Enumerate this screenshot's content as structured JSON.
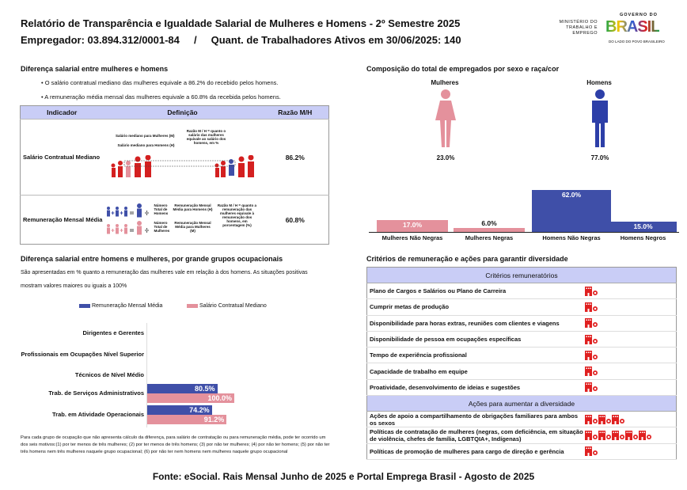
{
  "header": {
    "title": "Relatório de Transparência e Igualdade Salarial de Mulheres e Homens - 2º Semestre 2025",
    "subtitle": "Empregador: 03.894.312/0001-84     /     Quant. de Trabalhadores Ativos em 30/06/2025: 140",
    "logo_ministry": "MINISTÉRIO DO TRABALHO E EMPREGO",
    "logo_gov": "GOVERNO DO",
    "logo_brasil": "BRASIL",
    "logo_tagline": "DO LADO DO POVO BRASILEIRO"
  },
  "salary_gap": {
    "title": "Diferença salarial entre mulheres e homens",
    "bullets": [
      "O salário contratual mediano das mulheres equivale a 86.2% do recebido pelos homens.",
      "A remuneração média mensal das mulheres equivale a 60.8% da recebida pelos homens."
    ],
    "columns": [
      "Indicador",
      "Definição",
      "Razão M/H"
    ],
    "rows": [
      {
        "indicator": "Salário Contratual Mediano",
        "def_lines": [
          "Salário mediano para Mulheres (M)",
          "Salário mediano para Homens (H)"
        ],
        "def_note": "Razão M / H = quanto o salário das mulheres equivale ao salário dos homens, em %",
        "ratio": "86.2%"
      },
      {
        "indicator": "Remuneração Mensal Média",
        "def_men": "Número Total de Homens",
        "def_men_result": "Remuneração Mensal Média para Homens (H)",
        "def_women": "Número Total de Mulheres",
        "def_women_result": "Remuneração Mensal Média para Mulheres (M)",
        "def_note": "Razão M / H = quanto a remuneração das mulheres equivale à remuneração dos homens, em porcentagem (%)",
        "ratio": "60.8%"
      }
    ]
  },
  "composition": {
    "title": "Composição do total de empregados por sexo e raça/cor",
    "women_label": "Mulheres",
    "men_label": "Homens",
    "women_pct": "23.0%",
    "men_pct": "77.0%",
    "colors": {
      "women": "#e4919c",
      "men": "#3f4fa8"
    }
  },
  "chart_data": [
    {
      "type": "bar",
      "categories": [
        "Mulheres Não Negras",
        "Mulheres Negras",
        "Homens Não Negras",
        "Homens Negros"
      ],
      "values": [
        17.0,
        6.0,
        62.0,
        15.0
      ],
      "labels": [
        "17.0%",
        "6.0%",
        "62.0%",
        "15.0%"
      ],
      "colors": [
        "#e4919c",
        "#e4919c",
        "#3f4fa8",
        "#3f4fa8"
      ],
      "ylim": [
        0,
        70
      ]
    },
    {
      "type": "bar",
      "orientation": "horizontal",
      "title": "Diferença salarial entre homens e mulheres, por grande grupos ocupacionais",
      "description": [
        "São apresentadas em % quanto a remuneração das mulheres vale em relação à dos homens. As situações positivas",
        "mostram valores maiores ou iguais a 100%"
      ],
      "categories": [
        "Dirigentes e Gerentes",
        "Profissionais em Ocupações Nível Superior",
        "Técnicos de Nível Médio",
        "Trab. de Serviços Administrativos",
        "Trab. em Atividade Operacionais"
      ],
      "series": [
        {
          "name": "Remuneração Mensal Média",
          "color": "#3f4fa8",
          "values": [
            null,
            null,
            null,
            80.5,
            74.2
          ],
          "labels": [
            "",
            "",
            "",
            "80.5%",
            "74.2%"
          ]
        },
        {
          "name": "Salário Contratual Mediano",
          "color": "#e4919c",
          "values": [
            null,
            null,
            null,
            100.0,
            91.2
          ],
          "labels": [
            "",
            "",
            "",
            "100.0%",
            "91.2%"
          ]
        }
      ],
      "legend": "top",
      "footnote": "Para cada grupo de ocupação que não apresenta cálculo da diferença, para salário de contratação ou para remuneração média, pode ter ocorrido um dos seis motivos:(1) por ter menos de três mulheres; (2) por ter menos de três homens; (3) por não ter mulheres; (4) por não ter homens; (5) por não ter três homens nem três mulheres naquele grupo ocupacional; (6) por não ter nem homens nem mulheres naquele grupo ocupacional"
    }
  ],
  "criteria": {
    "title": "Critérios de remuneração e ações para garantir diversidade",
    "header1": "Critérios remuneratórios",
    "items": [
      {
        "label": "Plano de Cargos e Salários ou Plano de Carreira",
        "icons": 1
      },
      {
        "label": "Cumprir metas de produção",
        "icons": 1
      },
      {
        "label": "Disponibilidade para horas extras, reuniões com clientes e viagens",
        "icons": 1
      },
      {
        "label": "Disponibilidade de pessoa em ocupações específicas",
        "icons": 1
      },
      {
        "label": "Tempo de experiência profissional",
        "icons": 1
      },
      {
        "label": "Capacidade de trabalho em equipe",
        "icons": 1
      },
      {
        "label": "Proatividade, desenvolvimento de ideias e sugestões",
        "icons": 1
      }
    ],
    "header2": "Ações para aumentar a diversidade",
    "actions": [
      {
        "label": "Ações de apoio a compartilhamento de obrigações familiares para ambos os sexos",
        "icons": 3
      },
      {
        "label": "Políticas de contratação de mulheres (negras, com deficiência, em situação de violência, chefes de família, LGBTQIA+, Indígenas)",
        "icons": 5
      },
      {
        "label": "Políticas de promoção de mulheres para cargo de direção e gerência",
        "icons": 1
      }
    ],
    "icon": "building-person-icon",
    "icon_color": "#e02020"
  },
  "footer": {
    "source": "Fonte: eSocial. Rais Mensal Junho de 2025 e Portal Emprega Brasil - Agosto de 2025"
  }
}
